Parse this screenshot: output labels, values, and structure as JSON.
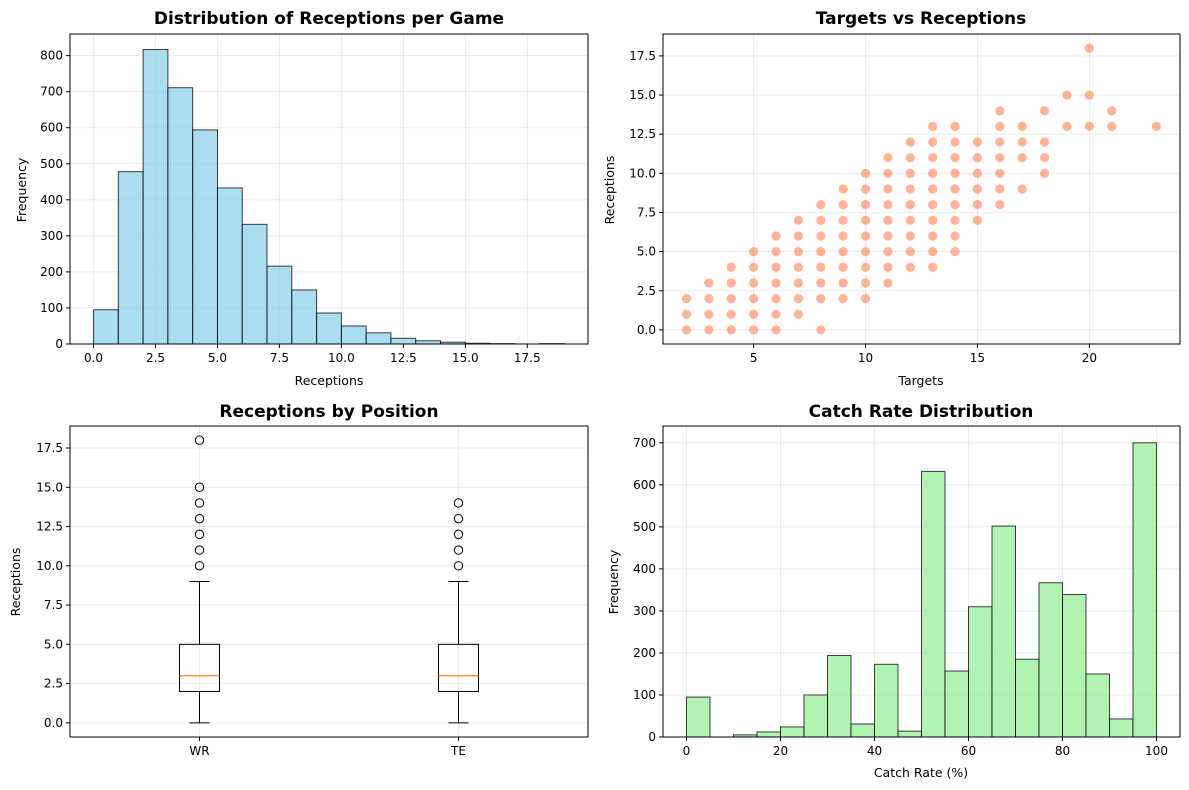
{
  "colors": {
    "hist1_fill": "#87ceeb",
    "scatter_fill": "#ff7f50",
    "hist2_fill": "#90ee90",
    "median_line": "#ff7f0e",
    "edge": "#000000",
    "grid": "#b0b0b0"
  },
  "chart_data": [
    {
      "type": "bar",
      "subtype": "histogram",
      "title": "Distribution of Receptions per Game",
      "xlabel": "Receptions",
      "ylabel": "Frequency",
      "bin_edges": [
        0,
        1,
        2,
        3,
        4,
        5,
        6,
        7,
        8,
        9,
        10,
        11,
        12,
        13,
        14,
        15,
        16,
        17,
        18,
        19
      ],
      "values": [
        95,
        478,
        817,
        711,
        594,
        433,
        332,
        216,
        150,
        86,
        50,
        31,
        16,
        9,
        5,
        2,
        1,
        0,
        1
      ],
      "xlim": [
        -0.95,
        19.95
      ],
      "ylim": [
        0,
        860
      ],
      "xticks": [
        0.0,
        2.5,
        5.0,
        7.5,
        10.0,
        12.5,
        15.0,
        17.5
      ],
      "xtick_labels": [
        "0.0",
        "2.5",
        "5.0",
        "7.5",
        "10.0",
        "12.5",
        "15.0",
        "17.5"
      ],
      "yticks": [
        0,
        100,
        200,
        300,
        400,
        500,
        600,
        700,
        800
      ],
      "ytick_labels": [
        "0",
        "100",
        "200",
        "300",
        "400",
        "500",
        "600",
        "700",
        "800"
      ],
      "grid": true
    },
    {
      "type": "scatter",
      "title": "Targets vs Receptions",
      "xlabel": "Targets",
      "ylabel": "Receptions",
      "points": [
        [
          2,
          0
        ],
        [
          2,
          1
        ],
        [
          2,
          2
        ],
        [
          3,
          0
        ],
        [
          3,
          1
        ],
        [
          3,
          2
        ],
        [
          3,
          3
        ],
        [
          4,
          0
        ],
        [
          4,
          1
        ],
        [
          4,
          2
        ],
        [
          4,
          3
        ],
        [
          4,
          4
        ],
        [
          5,
          0
        ],
        [
          5,
          1
        ],
        [
          5,
          2
        ],
        [
          5,
          3
        ],
        [
          5,
          4
        ],
        [
          5,
          5
        ],
        [
          6,
          0
        ],
        [
          6,
          1
        ],
        [
          6,
          2
        ],
        [
          6,
          3
        ],
        [
          6,
          4
        ],
        [
          6,
          5
        ],
        [
          6,
          6
        ],
        [
          7,
          1
        ],
        [
          7,
          2
        ],
        [
          7,
          3
        ],
        [
          7,
          4
        ],
        [
          7,
          5
        ],
        [
          7,
          6
        ],
        [
          7,
          7
        ],
        [
          8,
          0
        ],
        [
          8,
          2
        ],
        [
          8,
          3
        ],
        [
          8,
          4
        ],
        [
          8,
          5
        ],
        [
          8,
          6
        ],
        [
          8,
          7
        ],
        [
          8,
          8
        ],
        [
          9,
          2
        ],
        [
          9,
          3
        ],
        [
          9,
          4
        ],
        [
          9,
          5
        ],
        [
          9,
          6
        ],
        [
          9,
          7
        ],
        [
          9,
          8
        ],
        [
          9,
          9
        ],
        [
          10,
          2
        ],
        [
          10,
          3
        ],
        [
          10,
          4
        ],
        [
          10,
          5
        ],
        [
          10,
          6
        ],
        [
          10,
          7
        ],
        [
          10,
          8
        ],
        [
          10,
          9
        ],
        [
          10,
          10
        ],
        [
          11,
          3
        ],
        [
          11,
          4
        ],
        [
          11,
          5
        ],
        [
          11,
          6
        ],
        [
          11,
          7
        ],
        [
          11,
          8
        ],
        [
          11,
          9
        ],
        [
          11,
          10
        ],
        [
          11,
          11
        ],
        [
          12,
          4
        ],
        [
          12,
          5
        ],
        [
          12,
          6
        ],
        [
          12,
          7
        ],
        [
          12,
          8
        ],
        [
          12,
          9
        ],
        [
          12,
          10
        ],
        [
          12,
          11
        ],
        [
          12,
          12
        ],
        [
          13,
          4
        ],
        [
          13,
          5
        ],
        [
          13,
          6
        ],
        [
          13,
          7
        ],
        [
          13,
          8
        ],
        [
          13,
          9
        ],
        [
          13,
          10
        ],
        [
          13,
          11
        ],
        [
          13,
          12
        ],
        [
          13,
          13
        ],
        [
          14,
          5
        ],
        [
          14,
          6
        ],
        [
          14,
          7
        ],
        [
          14,
          8
        ],
        [
          14,
          9
        ],
        [
          14,
          10
        ],
        [
          14,
          11
        ],
        [
          14,
          12
        ],
        [
          14,
          13
        ],
        [
          15,
          7
        ],
        [
          15,
          8
        ],
        [
          15,
          9
        ],
        [
          15,
          10
        ],
        [
          15,
          11
        ],
        [
          15,
          12
        ],
        [
          16,
          8
        ],
        [
          16,
          9
        ],
        [
          16,
          10
        ],
        [
          16,
          11
        ],
        [
          16,
          12
        ],
        [
          16,
          13
        ],
        [
          16,
          14
        ],
        [
          17,
          9
        ],
        [
          17,
          11
        ],
        [
          17,
          12
        ],
        [
          17,
          13
        ],
        [
          18,
          10
        ],
        [
          18,
          11
        ],
        [
          18,
          12
        ],
        [
          18,
          14
        ],
        [
          19,
          13
        ],
        [
          19,
          15
        ],
        [
          20,
          13
        ],
        [
          20,
          15
        ],
        [
          20,
          18
        ],
        [
          21,
          13
        ],
        [
          21,
          14
        ],
        [
          23,
          13
        ]
      ],
      "xlim": [
        0.95,
        24.05
      ],
      "ylim": [
        -0.9,
        18.9
      ],
      "xticks": [
        5,
        10,
        15,
        20
      ],
      "xtick_labels": [
        "5",
        "10",
        "15",
        "20"
      ],
      "yticks": [
        0.0,
        2.5,
        5.0,
        7.5,
        10.0,
        12.5,
        15.0,
        17.5
      ],
      "ytick_labels": [
        "0.0",
        "2.5",
        "5.0",
        "7.5",
        "10.0",
        "12.5",
        "15.0",
        "17.5"
      ],
      "grid": true
    },
    {
      "type": "box",
      "title": "Receptions by Position",
      "ylabel": "Receptions",
      "categories": [
        "WR",
        "TE"
      ],
      "boxes": [
        {
          "min": 0,
          "q1": 2,
          "median": 3,
          "q3": 5,
          "max": 9,
          "outliers": [
            10,
            11,
            12,
            13,
            14,
            15,
            18
          ]
        },
        {
          "min": 0,
          "q1": 2,
          "median": 3,
          "q3": 5,
          "max": 9,
          "outliers": [
            10,
            11,
            12,
            13,
            14
          ]
        }
      ],
      "ylim": [
        -0.9,
        18.9
      ],
      "yticks": [
        0.0,
        2.5,
        5.0,
        7.5,
        10.0,
        12.5,
        15.0,
        17.5
      ],
      "ytick_labels": [
        "0.0",
        "2.5",
        "5.0",
        "7.5",
        "10.0",
        "12.5",
        "15.0",
        "17.5"
      ],
      "grid": true
    },
    {
      "type": "bar",
      "subtype": "histogram",
      "title": "Catch Rate Distribution",
      "xlabel": "Catch Rate (%)",
      "ylabel": "Frequency",
      "bin_edges": [
        0,
        5,
        10,
        15,
        20,
        25,
        30,
        35,
        40,
        45,
        50,
        55,
        60,
        65,
        70,
        75,
        80,
        85,
        90,
        95,
        100
      ],
      "values": [
        95,
        0,
        5,
        12,
        24,
        100,
        194,
        31,
        173,
        14,
        632,
        157,
        310,
        502,
        185,
        367,
        339,
        150,
        43,
        700
      ],
      "xlim": [
        -5,
        105
      ],
      "ylim": [
        0,
        740
      ],
      "xticks": [
        0,
        20,
        40,
        60,
        80,
        100
      ],
      "xtick_labels": [
        "0",
        "20",
        "40",
        "60",
        "80",
        "100"
      ],
      "yticks": [
        0,
        100,
        200,
        300,
        400,
        500,
        600,
        700
      ],
      "ytick_labels": [
        "0",
        "100",
        "200",
        "300",
        "400",
        "500",
        "600",
        "700"
      ],
      "grid": true
    }
  ]
}
